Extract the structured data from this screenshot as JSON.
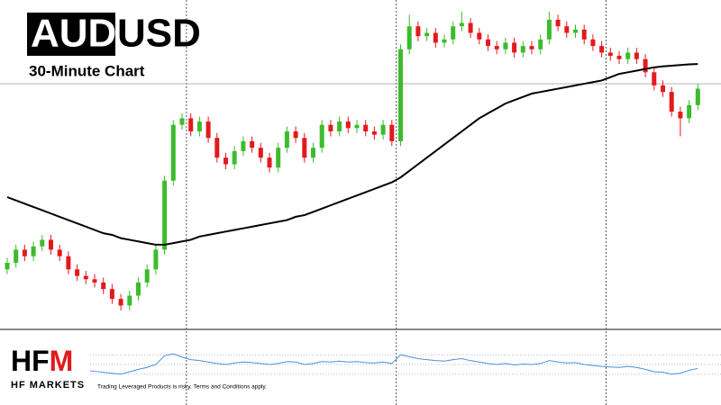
{
  "chart_data": {
    "type": "candlestick",
    "title_parts": [
      "AUD",
      "USD"
    ],
    "subtitle": "30-Minute Chart",
    "ylim": [
      0,
      100
    ],
    "up_color": "#3dbb2e",
    "down_color": "#e3191c",
    "price_line": 74.5,
    "session_breaks": [
      21,
      45,
      69
    ],
    "open": [
      18,
      20,
      24,
      22,
      25,
      27,
      24,
      22,
      18,
      16,
      15,
      14,
      12,
      9,
      7,
      10,
      14,
      18,
      24,
      45,
      62,
      64,
      60,
      63,
      58,
      52,
      50,
      54,
      57,
      55,
      52,
      49,
      55,
      60,
      58,
      52,
      55,
      62,
      60,
      63,
      61,
      62,
      60,
      59,
      62,
      57,
      85,
      92,
      89,
      90,
      87,
      88,
      92,
      93,
      90,
      88,
      86,
      85,
      87,
      84,
      86,
      85,
      88,
      94,
      92,
      90,
      91,
      88,
      86,
      84,
      83,
      82,
      84,
      82,
      78,
      74,
      72,
      66,
      64,
      68
    ],
    "high": [
      21.5,
      25.5,
      25.5,
      26.5,
      28.5,
      28.5,
      25.5,
      23.5,
      19.5,
      17.5,
      16.5,
      15.5,
      13.5,
      10.5,
      11.5,
      15.5,
      19.5,
      25.5,
      46.5,
      63.5,
      65.5,
      65.5,
      64.5,
      64.5,
      59.5,
      53.5,
      55.5,
      58.5,
      58.5,
      56.5,
      53.5,
      56.5,
      61.5,
      61.5,
      59.5,
      56.5,
      63.5,
      63.5,
      64.5,
      64.5,
      63.5,
      63.5,
      61.5,
      63.5,
      63.5,
      86.5,
      95.5,
      93.5,
      91.5,
      91.5,
      89.5,
      93.5,
      96.5,
      94.5,
      91.5,
      89.5,
      87.5,
      88.5,
      88.5,
      87.5,
      87.5,
      89.5,
      96.5,
      95.5,
      93.5,
      92.5,
      92.5,
      89.5,
      87.5,
      85.5,
      84.5,
      85.5,
      85.5,
      83.5,
      79.5,
      75.5,
      73.5,
      67.5,
      69.5,
      74.5
    ],
    "low": [
      16.5,
      18.5,
      20.5,
      20.5,
      23.5,
      22.5,
      20.5,
      16.5,
      14.5,
      13.5,
      12.5,
      10.5,
      7.5,
      5.5,
      5.5,
      8.5,
      12.5,
      16.5,
      22.5,
      43.5,
      60.5,
      58.5,
      58.5,
      56.5,
      50.5,
      48.5,
      48.5,
      52.5,
      53.5,
      50.5,
      47.5,
      47.5,
      53.5,
      56.5,
      50.5,
      50.5,
      53.5,
      58.5,
      58.5,
      59.5,
      59.5,
      58.5,
      57.5,
      57.5,
      55.5,
      55.5,
      83.5,
      87.5,
      87.5,
      85.5,
      85.5,
      86.5,
      90.5,
      88.5,
      86.5,
      84.5,
      83.5,
      83.5,
      82.5,
      82.5,
      83.5,
      83.5,
      86.5,
      90.5,
      88.5,
      88.5,
      86.5,
      84.5,
      82.5,
      81.5,
      80.5,
      80.5,
      80.5,
      76.5,
      72.5,
      70.5,
      64.5,
      58.5,
      62.5,
      66.5
    ],
    "close": [
      20,
      24,
      22,
      25,
      27,
      24,
      22,
      18,
      16,
      15,
      14,
      12,
      9,
      7,
      10,
      14,
      18,
      24,
      45,
      62,
      64,
      60,
      63,
      58,
      52,
      50,
      54,
      57,
      55,
      52,
      49,
      55,
      60,
      58,
      52,
      55,
      62,
      60,
      63,
      61,
      62,
      60,
      59,
      62,
      57,
      85,
      92,
      89,
      90,
      87,
      88,
      92,
      93,
      90,
      88,
      86,
      85,
      87,
      84,
      86,
      85,
      88,
      94,
      92,
      90,
      91,
      88,
      86,
      84,
      83,
      82,
      84,
      82,
      78,
      74,
      72,
      66,
      64,
      68,
      73
    ],
    "ma": {
      "color": "#000000",
      "values": [
        40,
        39,
        38,
        37,
        36,
        35,
        34,
        33,
        32,
        31,
        30,
        29,
        28.5,
        27.5,
        27,
        26.5,
        26,
        25.5,
        25.5,
        26,
        26.5,
        27,
        28,
        28.5,
        29,
        29.5,
        30,
        30.5,
        31,
        31.5,
        32,
        32.5,
        33,
        34,
        34.5,
        35.5,
        36.5,
        37.5,
        38.5,
        39.5,
        40.5,
        41.5,
        42.5,
        43.5,
        44.5,
        46,
        48,
        50,
        52,
        54,
        56,
        58,
        60,
        62,
        64,
        65.5,
        67,
        68.5,
        69.5,
        70.5,
        71.5,
        72,
        72.5,
        73,
        73.5,
        74,
        74.5,
        75,
        75.5,
        76.5,
        77.5,
        78,
        78.5,
        79,
        79.5,
        79.8,
        80,
        80.2,
        80.4,
        80.5
      ]
    },
    "indicator": {
      "color": "#4a90d9",
      "ylim": [
        0,
        100
      ],
      "levels": [
        30,
        50,
        70
      ],
      "values": [
        45,
        50,
        48,
        52,
        55,
        50,
        46,
        42,
        40,
        38,
        36,
        34,
        32,
        30,
        35,
        40,
        44,
        50,
        68,
        72,
        65,
        60,
        58,
        55,
        52,
        50,
        53,
        55,
        54,
        52,
        50,
        52,
        56,
        55,
        50,
        52,
        56,
        55,
        57,
        55,
        56,
        54,
        53,
        55,
        52,
        70,
        66,
        62,
        60,
        58,
        57,
        60,
        62,
        58,
        55,
        52,
        50,
        52,
        49,
        51,
        50,
        52,
        58,
        55,
        53,
        54,
        50,
        48,
        46,
        45,
        44,
        46,
        44,
        40,
        35,
        34,
        30,
        32,
        38,
        42
      ]
    }
  },
  "branding": {
    "logo": [
      "HF",
      "M"
    ],
    "name": "HF MARKETS",
    "disclaimer": "Trading Leveraged Products is risky. Terms and Conditions apply."
  }
}
